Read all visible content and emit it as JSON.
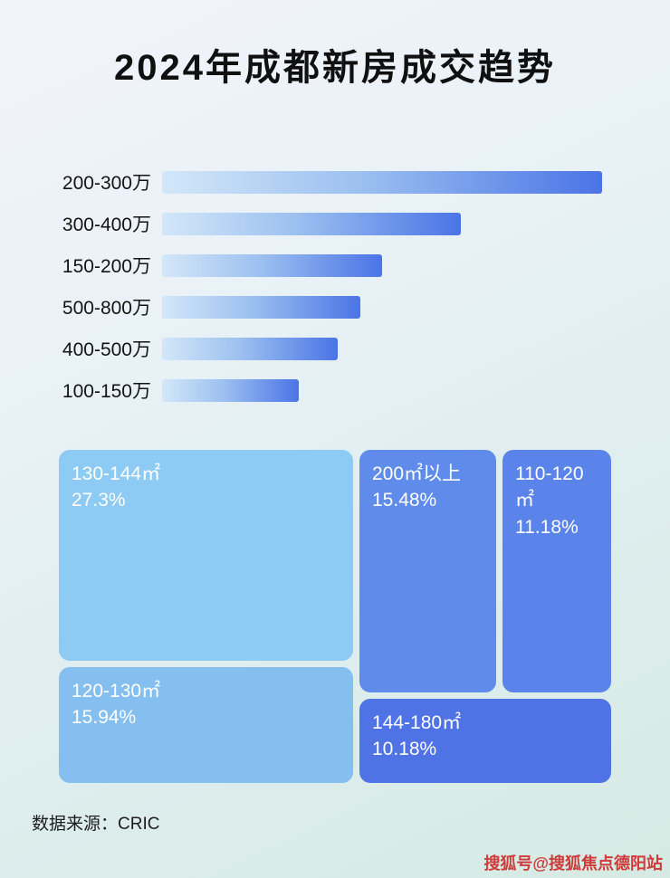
{
  "page": {
    "title": "2024年成都新房成交趋势",
    "source_note": "数据来源：CRIC",
    "watermark": "搜狐号@搜狐焦点德阳站"
  },
  "colors": {
    "bar_gradient_start": "#d3e7f8",
    "bar_gradient_end": "#4b74e6",
    "treemap_block_130_144": "#8ecbf4",
    "treemap_block_120_130": "#85bff0",
    "treemap_block_200_plus": "#5f8ceb",
    "treemap_block_110_120": "#5a84e9",
    "treemap_block_144_180": "#4f73e5",
    "title_text": "#101010",
    "treemap_text": "#ffffff",
    "watermark_text": "#cf3a3a"
  },
  "chart_data": [
    {
      "type": "bar",
      "orientation": "horizontal",
      "title": "2024年成都新房成交趋势",
      "categories": [
        "200-300万",
        "300-400万",
        "150-200万",
        "500-800万",
        "400-500万",
        "100-150万"
      ],
      "values_relative_pct": [
        100,
        68,
        50,
        45,
        40,
        31
      ],
      "value_labels_shown": false,
      "xlabel": "",
      "ylabel": "",
      "grid": false,
      "legend": false
    },
    {
      "type": "treemap",
      "items": [
        {
          "label": "130-144㎡",
          "value_pct": 27.3,
          "value_text": "27.3%"
        },
        {
          "label": "200㎡以上",
          "value_pct": 15.48,
          "value_text": "15.48%"
        },
        {
          "label": "120-130㎡",
          "value_pct": 15.94,
          "value_text": "15.94%"
        },
        {
          "label": "110-120㎡",
          "value_pct": 11.18,
          "value_text": "11.18%"
        },
        {
          "label": "144-180㎡",
          "value_pct": 10.18,
          "value_text": "10.18%"
        }
      ]
    }
  ]
}
